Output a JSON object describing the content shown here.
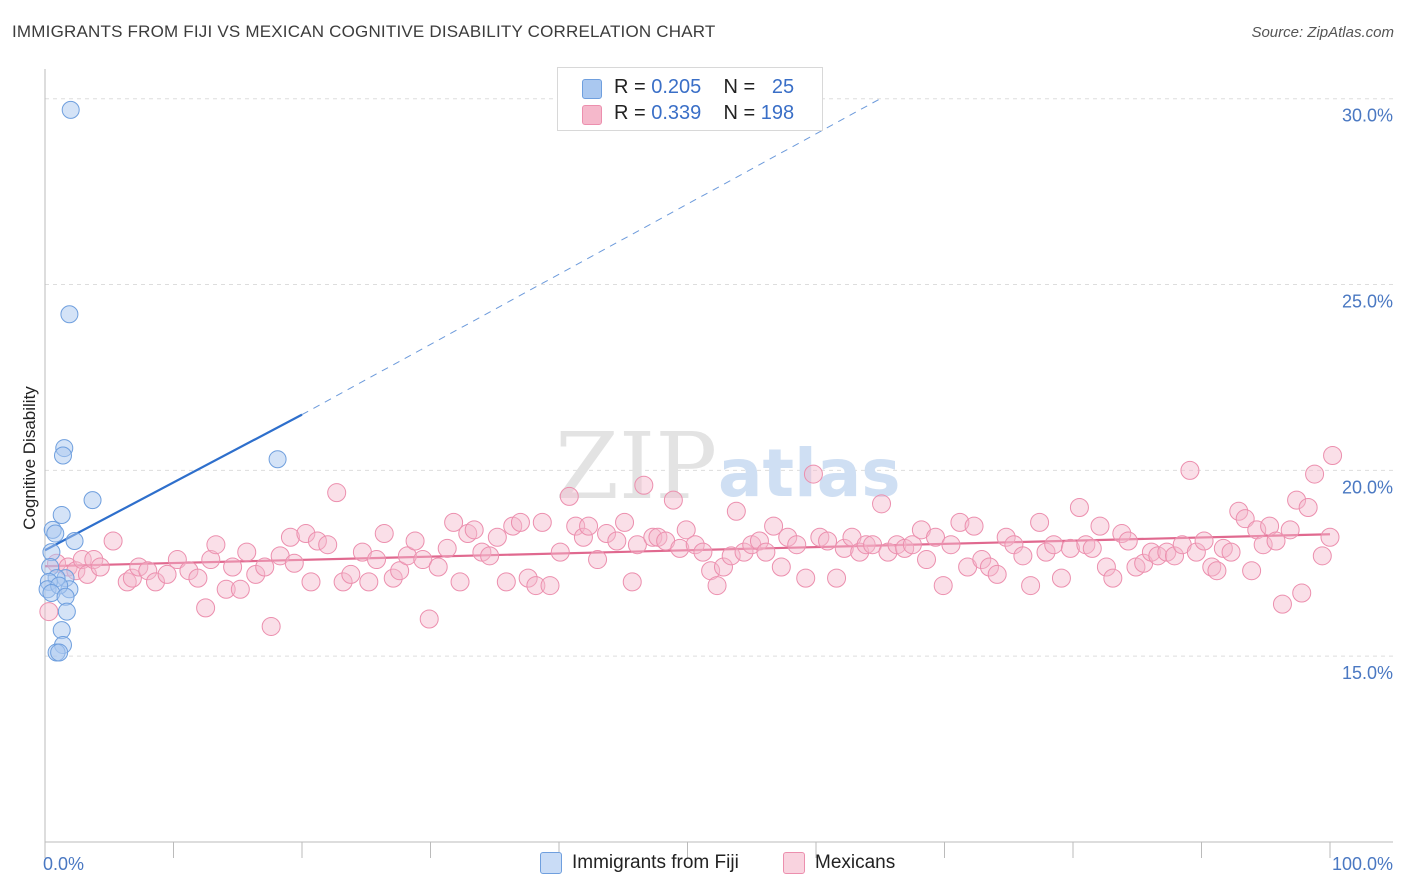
{
  "title": "IMMIGRANTS FROM FIJI VS MEXICAN COGNITIVE DISABILITY CORRELATION CHART",
  "source": "Source: ZipAtlas.com",
  "watermark": {
    "zip": "ZIP",
    "atlas": "atlas"
  },
  "legend": {
    "rows": [
      {
        "r_label": "R = ",
        "r_value": "0.205",
        "n_label": "N = ",
        "n_value": "25",
        "color": "#aac8f0"
      },
      {
        "r_label": "R = ",
        "r_value": "0.339",
        "n_label": "N = ",
        "n_value": "198",
        "color": "#f5b8cb"
      }
    ]
  },
  "bottom_legend": {
    "fiji": "Immigrants from Fiji",
    "mexicans": "Mexicans"
  },
  "colors": {
    "fiji_fill": "#aac8f0",
    "fiji_stroke": "#6f9fde",
    "fiji_line": "#2e6fcc",
    "mex_fill": "#f5b8cb",
    "mex_stroke": "#ec8fae",
    "mex_line": "#e0698f",
    "grid": "#dddddd",
    "tick_label": "#4a78c2"
  },
  "chart_data": {
    "type": "scatter",
    "xlabel": "",
    "ylabel": "Cognitive Disability",
    "xlim": [
      0,
      100
    ],
    "ylim": [
      10.0,
      30.8
    ],
    "x_tick_labels": [
      "0.0%",
      "100.0%"
    ],
    "y_ticks": [
      15.0,
      20.0,
      25.0,
      30.0
    ],
    "y_tick_labels": [
      "15.0%",
      "20.0%",
      "25.0%",
      "30.0%"
    ],
    "grid": "horizontal dashed",
    "legend_placement": "top-center",
    "series": [
      {
        "name": "Immigrants from Fiji",
        "R": 0.205,
        "N": 25,
        "points": [
          [
            2.0,
            29.7
          ],
          [
            1.9,
            24.2
          ],
          [
            1.5,
            20.6
          ],
          [
            1.4,
            20.4
          ],
          [
            18.1,
            20.3
          ],
          [
            3.7,
            19.2
          ],
          [
            1.3,
            18.8
          ],
          [
            0.6,
            18.4
          ],
          [
            0.8,
            18.3
          ],
          [
            2.3,
            18.1
          ],
          [
            0.5,
            17.8
          ],
          [
            0.4,
            17.4
          ],
          [
            1.6,
            17.1
          ],
          [
            1.9,
            16.8
          ],
          [
            0.9,
            17.1
          ],
          [
            0.3,
            17.0
          ],
          [
            0.2,
            16.8
          ],
          [
            1.1,
            16.9
          ],
          [
            0.5,
            16.7
          ],
          [
            1.6,
            16.6
          ],
          [
            1.7,
            16.2
          ],
          [
            1.3,
            15.7
          ],
          [
            1.4,
            15.3
          ],
          [
            0.9,
            15.1
          ],
          [
            1.1,
            15.1
          ]
        ],
        "trend": {
          "x0": 0,
          "y0": 17.85,
          "x1_solid": 20,
          "y1_solid": 21.5,
          "x1_dashed": 65,
          "y1_dashed": 30.0
        }
      },
      {
        "name": "Mexicans",
        "R": 0.339,
        "N": 198,
        "points": [
          [
            0.3,
            16.2
          ],
          [
            0.9,
            17.5
          ],
          [
            1.8,
            17.4
          ],
          [
            2.4,
            17.3
          ],
          [
            2.9,
            17.6
          ],
          [
            3.3,
            17.2
          ],
          [
            3.8,
            17.6
          ],
          [
            4.3,
            17.4
          ],
          [
            5.3,
            18.1
          ],
          [
            6.4,
            17.0
          ],
          [
            6.8,
            17.1
          ],
          [
            7.3,
            17.4
          ],
          [
            8.0,
            17.3
          ],
          [
            8.6,
            17.0
          ],
          [
            9.5,
            17.2
          ],
          [
            10.3,
            17.6
          ],
          [
            11.2,
            17.3
          ],
          [
            11.9,
            17.1
          ],
          [
            12.5,
            16.3
          ],
          [
            12.9,
            17.6
          ],
          [
            13.3,
            18.0
          ],
          [
            14.1,
            16.8
          ],
          [
            14.6,
            17.4
          ],
          [
            15.2,
            16.8
          ],
          [
            15.7,
            17.8
          ],
          [
            16.4,
            17.2
          ],
          [
            17.1,
            17.4
          ],
          [
            17.6,
            15.8
          ],
          [
            18.3,
            17.7
          ],
          [
            19.1,
            18.2
          ],
          [
            19.4,
            17.5
          ],
          [
            20.3,
            18.3
          ],
          [
            20.7,
            17.0
          ],
          [
            21.2,
            18.1
          ],
          [
            22.0,
            18.0
          ],
          [
            22.7,
            19.4
          ],
          [
            23.2,
            17.0
          ],
          [
            23.8,
            17.2
          ],
          [
            24.7,
            17.8
          ],
          [
            25.2,
            17.0
          ],
          [
            25.8,
            17.6
          ],
          [
            26.4,
            18.3
          ],
          [
            27.1,
            17.1
          ],
          [
            27.6,
            17.3
          ],
          [
            28.2,
            17.7
          ],
          [
            28.8,
            18.1
          ],
          [
            29.4,
            17.6
          ],
          [
            29.9,
            16.0
          ],
          [
            30.6,
            17.4
          ],
          [
            31.3,
            17.9
          ],
          [
            31.8,
            18.6
          ],
          [
            32.3,
            17.0
          ],
          [
            32.9,
            18.3
          ],
          [
            33.4,
            18.4
          ],
          [
            34.0,
            17.8
          ],
          [
            34.6,
            17.7
          ],
          [
            35.2,
            18.2
          ],
          [
            35.9,
            17.0
          ],
          [
            36.4,
            18.5
          ],
          [
            37.0,
            18.6
          ],
          [
            37.6,
            17.1
          ],
          [
            38.2,
            16.9
          ],
          [
            38.7,
            18.6
          ],
          [
            39.3,
            16.9
          ],
          [
            40.1,
            17.8
          ],
          [
            40.8,
            19.3
          ],
          [
            41.3,
            18.5
          ],
          [
            41.9,
            18.2
          ],
          [
            42.3,
            18.5
          ],
          [
            43.0,
            17.6
          ],
          [
            43.7,
            18.3
          ],
          [
            44.5,
            18.1
          ],
          [
            45.1,
            18.6
          ],
          [
            45.7,
            17.0
          ],
          [
            46.1,
            18.0
          ],
          [
            46.6,
            19.6
          ],
          [
            47.3,
            18.2
          ],
          [
            47.7,
            18.2
          ],
          [
            48.3,
            18.1
          ],
          [
            48.9,
            19.2
          ],
          [
            49.4,
            17.9
          ],
          [
            49.9,
            18.4
          ],
          [
            50.6,
            18.0
          ],
          [
            51.2,
            17.8
          ],
          [
            51.8,
            17.3
          ],
          [
            52.3,
            16.9
          ],
          [
            52.8,
            17.4
          ],
          [
            53.4,
            17.7
          ],
          [
            53.8,
            18.9
          ],
          [
            54.4,
            17.8
          ],
          [
            55.0,
            18.0
          ],
          [
            55.6,
            18.1
          ],
          [
            56.1,
            17.8
          ],
          [
            56.7,
            18.5
          ],
          [
            57.3,
            17.4
          ],
          [
            57.8,
            18.2
          ],
          [
            58.5,
            18.0
          ],
          [
            59.2,
            17.1
          ],
          [
            59.8,
            19.9
          ],
          [
            60.3,
            18.2
          ],
          [
            60.9,
            18.1
          ],
          [
            61.6,
            17.1
          ],
          [
            62.2,
            17.9
          ],
          [
            62.8,
            18.2
          ],
          [
            63.4,
            17.8
          ],
          [
            63.9,
            18.0
          ],
          [
            64.4,
            18.0
          ],
          [
            65.1,
            19.1
          ],
          [
            65.6,
            17.8
          ],
          [
            66.3,
            18.0
          ],
          [
            66.9,
            17.9
          ],
          [
            67.5,
            18.0
          ],
          [
            68.2,
            18.4
          ],
          [
            68.6,
            17.6
          ],
          [
            69.3,
            18.2
          ],
          [
            69.9,
            16.9
          ],
          [
            70.5,
            18.0
          ],
          [
            71.2,
            18.6
          ],
          [
            71.8,
            17.4
          ],
          [
            72.3,
            18.5
          ],
          [
            72.9,
            17.6
          ],
          [
            73.5,
            17.4
          ],
          [
            74.1,
            17.2
          ],
          [
            74.8,
            18.2
          ],
          [
            75.4,
            18.0
          ],
          [
            76.1,
            17.7
          ],
          [
            76.7,
            16.9
          ],
          [
            77.4,
            18.6
          ],
          [
            77.9,
            17.8
          ],
          [
            78.5,
            18.0
          ],
          [
            79.1,
            17.1
          ],
          [
            79.8,
            17.9
          ],
          [
            80.5,
            19.0
          ],
          [
            81.0,
            18.0
          ],
          [
            81.5,
            17.9
          ],
          [
            82.1,
            18.5
          ],
          [
            82.6,
            17.4
          ],
          [
            83.1,
            17.1
          ],
          [
            83.8,
            18.3
          ],
          [
            84.3,
            18.1
          ],
          [
            84.9,
            17.4
          ],
          [
            85.5,
            17.5
          ],
          [
            86.1,
            17.8
          ],
          [
            86.6,
            17.7
          ],
          [
            87.3,
            17.8
          ],
          [
            87.9,
            17.7
          ],
          [
            88.5,
            18.0
          ],
          [
            89.1,
            20.0
          ],
          [
            89.6,
            17.8
          ],
          [
            90.2,
            18.1
          ],
          [
            90.8,
            17.4
          ],
          [
            91.2,
            17.3
          ],
          [
            91.7,
            17.9
          ],
          [
            92.3,
            17.8
          ],
          [
            92.9,
            18.9
          ],
          [
            93.4,
            18.7
          ],
          [
            93.9,
            17.3
          ],
          [
            94.3,
            18.4
          ],
          [
            94.8,
            18.0
          ],
          [
            95.3,
            18.5
          ],
          [
            95.8,
            18.1
          ],
          [
            96.3,
            16.4
          ],
          [
            96.9,
            18.4
          ],
          [
            97.4,
            19.2
          ],
          [
            97.8,
            16.7
          ],
          [
            98.3,
            19.0
          ],
          [
            98.8,
            19.9
          ],
          [
            99.4,
            17.7
          ],
          [
            100.0,
            18.2
          ],
          [
            100.2,
            20.4
          ]
        ],
        "trend": {
          "x0": 0,
          "y0": 17.42,
          "x1": 100,
          "y1": 18.28
        }
      }
    ]
  }
}
